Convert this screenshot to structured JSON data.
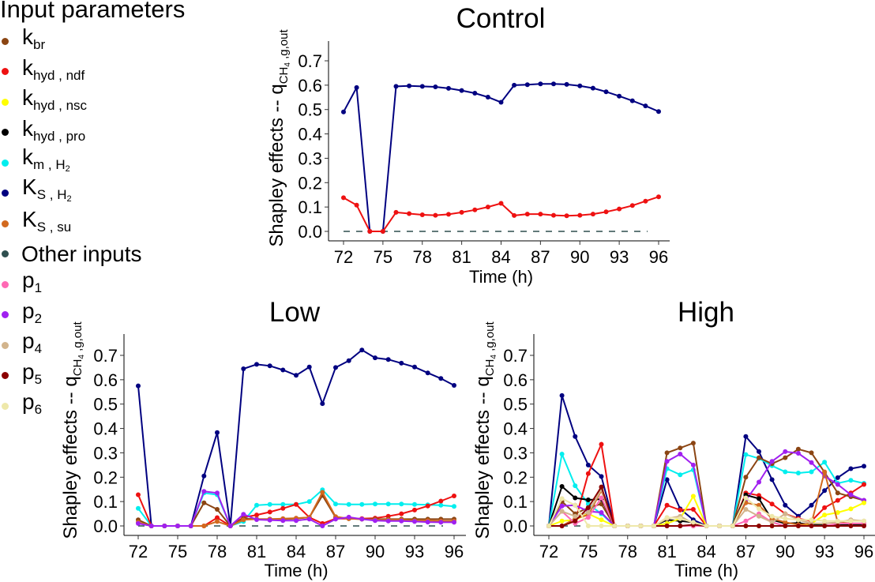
{
  "legend": {
    "title": "Input parameters",
    "items": [
      {
        "key": "k_br",
        "base": "k",
        "sub": "br",
        "sub2": "",
        "color": "#8B4513"
      },
      {
        "key": "k_hyd_ndf",
        "base": "k",
        "sub": "hyd , ndf",
        "sub2": "",
        "color": "#EE1111"
      },
      {
        "key": "k_hyd_nsc",
        "base": "k",
        "sub": "hyd , nsc",
        "sub2": "",
        "color": "#FFFF00"
      },
      {
        "key": "k_hyd_pro",
        "base": "k",
        "sub": "hyd , pro",
        "sub2": "",
        "color": "#000000"
      },
      {
        "key": "k_m_H2",
        "base": "k",
        "sub": "m , H",
        "sub2": "2",
        "color": "#00EEEE"
      },
      {
        "key": "K_S_H2",
        "base": "K",
        "sub": "S , H",
        "sub2": "2",
        "color": "#000080"
      },
      {
        "key": "K_S_su",
        "base": "K",
        "sub": "S , su",
        "sub2": "",
        "color": "#D2691E"
      },
      {
        "key": "other",
        "base": "Other inputs",
        "sub": "",
        "sub2": "",
        "color": "#2F4F4F"
      },
      {
        "key": "p1",
        "base": "p",
        "sub": "1",
        "sub2": "",
        "color": "#FF69B4"
      },
      {
        "key": "p2",
        "base": "p",
        "sub": "2",
        "sub2": "",
        "color": "#A020F0"
      },
      {
        "key": "p4",
        "base": "p",
        "sub": "4",
        "sub2": "",
        "color": "#D2B48C"
      },
      {
        "key": "p5",
        "base": "p",
        "sub": "5",
        "sub2": "",
        "color": "#8B0000"
      },
      {
        "key": "p6",
        "base": "p",
        "sub": "6",
        "sub2": "",
        "color": "#EEE8AA"
      }
    ]
  },
  "chart_data": [
    {
      "type": "line",
      "title": "Control",
      "xlabel": "Time (h)",
      "ylabel": "Shapley effects  --  q_CH4,g,out",
      "ylabel_main": "Shapley effects  --  q",
      "ylabel_sub": "CH",
      "ylabel_sub2": "4",
      "ylabel_sub3": " ,g,out",
      "xlim": [
        72,
        96
      ],
      "ylim": [
        0,
        0.7
      ],
      "xticks": [
        "72",
        "75",
        "78",
        "81",
        "84",
        "87",
        "90",
        "93",
        "96"
      ],
      "yticks": [
        "0.0",
        "0.1",
        "0.2",
        "0.3",
        "0.4",
        "0.5",
        "0.6",
        "0.7"
      ],
      "reference_line": 0,
      "x": [
        72,
        73,
        74,
        75,
        76,
        77,
        78,
        79,
        80,
        81,
        82,
        83,
        84,
        85,
        86,
        87,
        88,
        89,
        90,
        91,
        92,
        93,
        94,
        95,
        96
      ],
      "series": [
        {
          "name": "K_S_H2",
          "values": [
            0.49,
            0.59,
            0.0,
            0.0,
            0.595,
            0.597,
            0.595,
            0.593,
            0.587,
            0.578,
            0.567,
            0.551,
            0.53,
            0.6,
            0.602,
            0.605,
            0.605,
            0.603,
            0.597,
            0.588,
            0.573,
            0.555,
            0.536,
            0.515,
            0.492
          ]
        },
        {
          "name": "k_hyd_ndf",
          "values": [
            0.138,
            0.108,
            0.0,
            0.0,
            0.078,
            0.073,
            0.068,
            0.066,
            0.07,
            0.078,
            0.088,
            0.1,
            0.115,
            0.065,
            0.071,
            0.071,
            0.066,
            0.064,
            0.066,
            0.071,
            0.08,
            0.092,
            0.106,
            0.124,
            0.142
          ]
        }
      ]
    },
    {
      "type": "line",
      "title": "Low",
      "xlabel": "Time (h)",
      "ylabel": "Shapley effects  --  q_CH4,g,out",
      "ylabel_main": "Shapley effects  --  q",
      "ylabel_sub": "CH",
      "ylabel_sub2": "4",
      "ylabel_sub3": " ,g,out",
      "xlim": [
        72,
        96
      ],
      "ylim": [
        0,
        0.7
      ],
      "xticks": [
        "72",
        "75",
        "78",
        "81",
        "84",
        "87",
        "90",
        "93",
        "96"
      ],
      "yticks": [
        "0.0",
        "0.1",
        "0.2",
        "0.3",
        "0.4",
        "0.5",
        "0.6",
        "0.7"
      ],
      "reference_line": 0,
      "x": [
        72,
        73,
        74,
        75,
        76,
        77,
        78,
        79,
        80,
        81,
        82,
        83,
        84,
        85,
        86,
        87,
        88,
        89,
        90,
        91,
        92,
        93,
        94,
        95,
        96
      ],
      "series": [
        {
          "name": "K_S_H2",
          "values": [
            0.575,
            0.0,
            0.0,
            0.0,
            0.0,
            0.205,
            0.383,
            0.0,
            0.645,
            0.663,
            0.657,
            0.64,
            0.618,
            0.652,
            0.502,
            0.65,
            0.678,
            0.722,
            0.69,
            0.683,
            0.668,
            0.652,
            0.628,
            0.605,
            0.577
          ]
        },
        {
          "name": "k_m_H2",
          "values": [
            0.072,
            0.0,
            0.0,
            0.0,
            0.0,
            0.135,
            0.128,
            0.0,
            0.018,
            0.085,
            0.088,
            0.088,
            0.088,
            0.1,
            0.148,
            0.09,
            0.088,
            0.088,
            0.09,
            0.09,
            0.09,
            0.088,
            0.087,
            0.085,
            0.08
          ]
        },
        {
          "name": "k_hyd_ndf",
          "values": [
            0.128,
            0.0,
            0.0,
            0.0,
            0.0,
            0.0,
            0.034,
            0.0,
            0.035,
            0.045,
            0.057,
            0.072,
            0.088,
            0.035,
            0.01,
            0.03,
            0.03,
            0.03,
            0.032,
            0.04,
            0.05,
            0.065,
            0.082,
            0.102,
            0.123
          ]
        },
        {
          "name": "k_br",
          "values": [
            0.025,
            0.0,
            0.0,
            0.0,
            0.0,
            0.095,
            0.068,
            0.0,
            0.03,
            0.028,
            0.028,
            0.028,
            0.03,
            0.035,
            0.125,
            0.035,
            0.03,
            0.028,
            0.028,
            0.028,
            0.028,
            0.028,
            0.028,
            0.028,
            0.028
          ]
        },
        {
          "name": "K_S_su",
          "values": [
            0.015,
            0.0,
            0.0,
            0.0,
            0.0,
            0.0,
            0.018,
            0.0,
            0.025,
            0.028,
            0.028,
            0.03,
            0.032,
            0.035,
            0.138,
            0.038,
            0.03,
            0.028,
            0.025,
            0.025,
            0.025,
            0.022,
            0.022,
            0.02,
            0.02
          ]
        },
        {
          "name": "p2",
          "values": [
            0.01,
            0.0,
            0.0,
            0.0,
            0.0,
            0.142,
            0.135,
            0.0,
            0.048,
            0.026,
            0.024,
            0.022,
            0.022,
            0.028,
            0.0,
            0.028,
            0.036,
            0.028,
            0.022,
            0.02,
            0.02,
            0.018,
            0.016,
            0.015,
            0.015
          ]
        }
      ]
    },
    {
      "type": "line",
      "title": "High",
      "xlabel": "Time (h)",
      "ylabel": "Shapley effects  --  q_CH4,g,out",
      "ylabel_main": "Shapley effects  --  q",
      "ylabel_sub": "CH",
      "ylabel_sub2": "4",
      "ylabel_sub3": " ,g,out",
      "xlim": [
        72,
        96
      ],
      "ylim": [
        0,
        0.7
      ],
      "xticks": [
        "72",
        "75",
        "78",
        "81",
        "84",
        "87",
        "90",
        "93",
        "96"
      ],
      "yticks": [
        "0.0",
        "0.1",
        "0.2",
        "0.3",
        "0.4",
        "0.5",
        "0.6",
        "0.7"
      ],
      "reference_line": 0,
      "x": [
        72,
        73,
        74,
        75,
        76,
        77,
        78,
        79,
        80,
        81,
        82,
        83,
        84,
        85,
        86,
        87,
        88,
        89,
        90,
        91,
        92,
        93,
        94,
        95,
        96
      ],
      "series": [
        {
          "name": "K_S_H2",
          "values": [
            0.0,
            0.535,
            0.367,
            0.25,
            0.203,
            0.0,
            0.0,
            0.0,
            0.0,
            0.19,
            0.07,
            0.025,
            0.0,
            0.0,
            0.0,
            0.367,
            0.305,
            0.19,
            0.085,
            0.04,
            0.085,
            0.145,
            0.198,
            0.235,
            0.245
          ]
        },
        {
          "name": "k_m_H2",
          "values": [
            0.0,
            0.295,
            0.165,
            0.09,
            0.05,
            0.0,
            0.0,
            0.0,
            0.0,
            0.235,
            0.21,
            0.23,
            0.0,
            0.0,
            0.0,
            0.293,
            0.277,
            0.247,
            0.222,
            0.217,
            0.222,
            0.262,
            0.175,
            0.187,
            0.175
          ]
        },
        {
          "name": "k_hyd_ndf",
          "values": [
            0.0,
            0.0,
            0.02,
            0.215,
            0.335,
            0.0,
            0.0,
            0.0,
            0.0,
            0.085,
            0.065,
            0.068,
            0.0,
            0.0,
            0.0,
            0.135,
            0.125,
            0.09,
            0.05,
            0.03,
            0.02,
            0.075,
            0.105,
            0.135,
            0.17
          ]
        },
        {
          "name": "k_br",
          "values": [
            0.0,
            0.1,
            0.05,
            0.075,
            0.09,
            0.0,
            0.0,
            0.0,
            0.0,
            0.3,
            0.32,
            0.34,
            0.0,
            0.0,
            0.0,
            0.2,
            0.28,
            0.255,
            0.28,
            0.315,
            0.3,
            0.22,
            0.135,
            0.12,
            0.105
          ]
        },
        {
          "name": "p2",
          "values": [
            0.0,
            0.082,
            0.085,
            0.06,
            0.055,
            0.0,
            0.0,
            0.0,
            0.0,
            0.265,
            0.295,
            0.25,
            0.0,
            0.0,
            0.0,
            0.105,
            0.18,
            0.265,
            0.305,
            0.298,
            0.26,
            0.205,
            0.17,
            0.128,
            0.105
          ]
        },
        {
          "name": "k_hyd_pro",
          "values": [
            0.0,
            0.162,
            0.115,
            0.107,
            0.11,
            0.0,
            0.0,
            0.0,
            0.0,
            0.025,
            0.02,
            0.015,
            0.0,
            0.0,
            0.0,
            0.127,
            0.112,
            0.025,
            0.01,
            0.012,
            0.005,
            0.003,
            0.003,
            0.005,
            0.005
          ]
        },
        {
          "name": "k_hyd_nsc",
          "values": [
            0.0,
            0.02,
            0.025,
            0.05,
            0.025,
            0.0,
            0.0,
            0.0,
            0.0,
            0.01,
            0.03,
            0.122,
            0.0,
            0.0,
            0.0,
            0.0,
            0.0,
            0.0,
            0.0,
            0.0,
            0.01,
            0.045,
            0.055,
            0.07,
            0.095
          ]
        },
        {
          "name": "K_S_su",
          "values": [
            0.0,
            0.0,
            0.03,
            0.045,
            0.145,
            0.0,
            0.0,
            0.0,
            0.0,
            0.0,
            0.0,
            0.0,
            0.0,
            0.0,
            0.0,
            0.095,
            0.085,
            0.03,
            0.015,
            0.005,
            0.01,
            0.222,
            0.015,
            0.01,
            0.01
          ]
        },
        {
          "name": "p1",
          "values": [
            0.0,
            0.06,
            0.01,
            0.035,
            0.115,
            0.0,
            0.0,
            0.0,
            0.0,
            0.0,
            0.0,
            0.0,
            0.0,
            0.0,
            0.0,
            0.02,
            0.05,
            0.015,
            0.0,
            0.0,
            0.0,
            0.0,
            0.01,
            0.01,
            0.01
          ]
        },
        {
          "name": "p4",
          "values": [
            0.0,
            0.06,
            0.04,
            0.055,
            0.15,
            0.0,
            0.0,
            0.0,
            0.0,
            0.03,
            0.04,
            0.01,
            0.0,
            0.0,
            0.0,
            0.068,
            0.04,
            0.015,
            0.05,
            0.025,
            0.01,
            0.01,
            0.015,
            0.025,
            0.02
          ]
        },
        {
          "name": "p5",
          "values": [
            0.0,
            0.0,
            0.02,
            0.075,
            0.16,
            0.0,
            0.0,
            0.0,
            0.0,
            0.0,
            0.0,
            0.005,
            0.0,
            0.0,
            0.0,
            0.0,
            0.0,
            0.0,
            0.0,
            0.0,
            0.0,
            0.0,
            0.0,
            0.0,
            0.0
          ]
        },
        {
          "name": "p6",
          "values": [
            0.0,
            0.112,
            0.085,
            0.0,
            0.0,
            0.0,
            0.0,
            0.0,
            0.0,
            0.035,
            0.03,
            0.015,
            0.0,
            0.0,
            0.0,
            0.115,
            0.07,
            0.04,
            0.03,
            0.025,
            0.025,
            0.02,
            0.02,
            0.02,
            0.02
          ]
        }
      ]
    }
  ]
}
